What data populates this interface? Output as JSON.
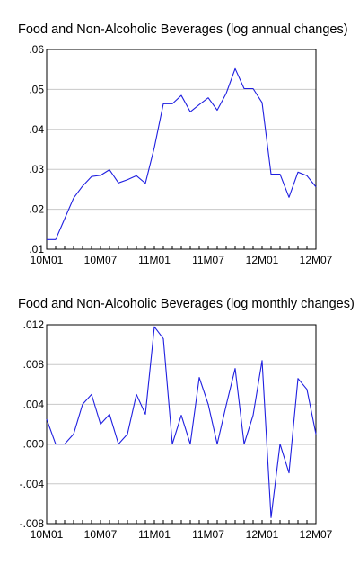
{
  "chart_data": [
    {
      "type": "line",
      "title": "Food and Non-Alcoholic Beverages (log annual changes)",
      "x_tick_labels": [
        "10M01",
        "10M07",
        "11M01",
        "11M07",
        "12M01",
        "12M07"
      ],
      "x": [
        "10M01",
        "10M02",
        "10M03",
        "10M04",
        "10M05",
        "10M06",
        "10M07",
        "10M08",
        "10M09",
        "10M10",
        "10M11",
        "10M12",
        "11M01",
        "11M02",
        "11M03",
        "11M04",
        "11M05",
        "11M06",
        "11M07",
        "11M08",
        "11M09",
        "11M10",
        "11M11",
        "11M12",
        "12M01",
        "12M02",
        "12M03",
        "12M04",
        "12M05",
        "12M06",
        "12M07"
      ],
      "series": [
        {
          "color": "#1f1fe0",
          "values": [
            0.0124,
            0.0124,
            0.0176,
            0.0228,
            0.0258,
            0.0282,
            0.0285,
            0.0299,
            0.0266,
            0.0274,
            0.0284,
            0.0265,
            0.0355,
            0.0464,
            0.0464,
            0.0485,
            0.0444,
            0.0462,
            0.0479,
            0.0448,
            0.049,
            0.0552,
            0.0502,
            0.0502,
            0.0467,
            0.0288,
            0.0288,
            0.023,
            0.0293,
            0.0284,
            0.0256
          ]
        }
      ],
      "y_tick_labels": [
        ".01",
        ".02",
        ".03",
        ".04",
        ".05",
        ".06"
      ],
      "y_ticks": [
        0.01,
        0.02,
        0.03,
        0.04,
        0.05,
        0.06
      ],
      "ylim": [
        0.01,
        0.06
      ],
      "grid": true
    },
    {
      "type": "line",
      "title": "Food and Non-Alcoholic Beverages (log monthly changes)",
      "x_tick_labels": [
        "10M01",
        "10M07",
        "11M01",
        "11M07",
        "12M01",
        "12M07"
      ],
      "x": [
        "10M01",
        "10M02",
        "10M03",
        "10M04",
        "10M05",
        "10M06",
        "10M07",
        "10M08",
        "10M09",
        "10M10",
        "10M11",
        "10M12",
        "11M01",
        "11M02",
        "11M03",
        "11M04",
        "11M05",
        "11M06",
        "11M07",
        "11M08",
        "11M09",
        "11M10",
        "11M11",
        "11M12",
        "12M01",
        "12M02",
        "12M03",
        "12M04",
        "12M05",
        "12M06",
        "12M07"
      ],
      "series": [
        {
          "color": "#1f1fe0",
          "values": [
            0.0025,
            0.0,
            0.0,
            0.001,
            0.004,
            0.005,
            0.002,
            0.003,
            0.0,
            0.001,
            0.005,
            0.003,
            0.0118,
            0.0106,
            0.0,
            0.0029,
            0.0,
            0.0067,
            0.004,
            0.0,
            0.0039,
            0.0076,
            0.0,
            0.0029,
            0.0084,
            -0.0074,
            0.0,
            -0.0029,
            0.0066,
            0.0055,
            0.001
          ]
        }
      ],
      "y_tick_labels": [
        "-.008",
        "-.004",
        ".000",
        ".004",
        ".008",
        ".012"
      ],
      "y_ticks": [
        -0.008,
        -0.004,
        0.0,
        0.004,
        0.008,
        0.012
      ],
      "ylim": [
        -0.008,
        0.012
      ],
      "grid": true,
      "zero_line": true
    }
  ]
}
